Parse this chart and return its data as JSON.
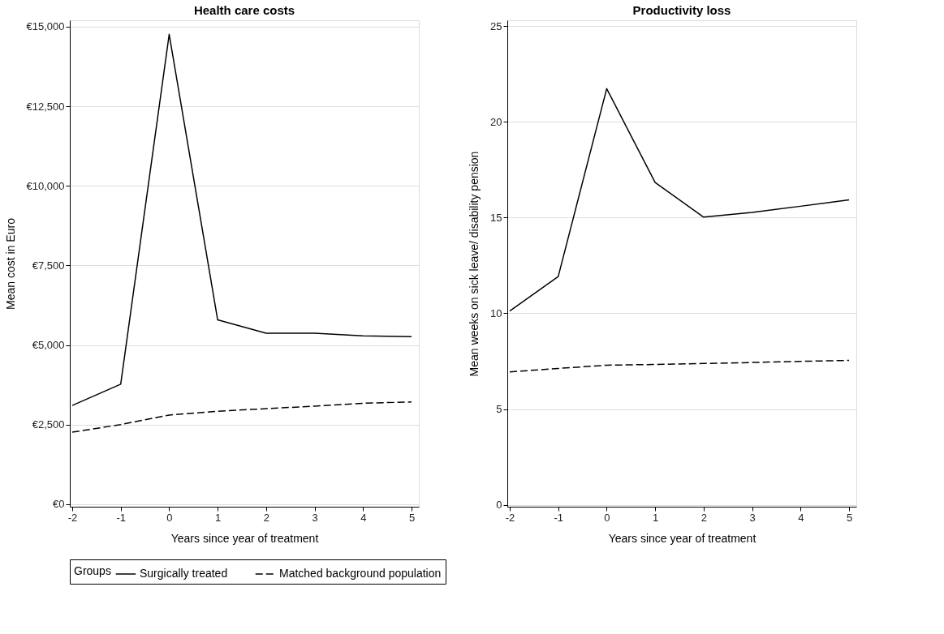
{
  "chart_data": [
    {
      "type": "line",
      "title": "Health care costs",
      "xlabel": "Years since year of treatment",
      "ylabel": "Mean cost in Euro",
      "legend_title": "Groups",
      "legend": "bottom",
      "grid": "y",
      "marker": "none",
      "x": [
        -2,
        -1,
        0,
        1,
        2,
        3,
        4,
        5
      ],
      "xlim": [
        -2.05,
        5.15
      ],
      "xticks": [
        -2,
        -1,
        0,
        1,
        2,
        3,
        4,
        5
      ],
      "ylim": [
        -80,
        15200
      ],
      "yticks": [
        {
          "value": 0,
          "label": "€0"
        },
        {
          "value": 2500,
          "label": "€2,500"
        },
        {
          "value": 5000,
          "label": "€5,000"
        },
        {
          "value": 7500,
          "label": "€7,500"
        },
        {
          "value": 10000,
          "label": "€10,000"
        },
        {
          "value": 12500,
          "label": "€12,500"
        },
        {
          "value": 15000,
          "label": "€15,000"
        }
      ],
      "series": [
        {
          "name": "Surgically treated",
          "color": "#000000",
          "line_style": "solid",
          "values": [
            3100,
            3770,
            14760,
            5790,
            5370,
            5370,
            5290,
            5260
          ]
        },
        {
          "name": "Matched background population",
          "color": "#000000",
          "line_style": "dashed",
          "values": [
            2260,
            2500,
            2800,
            2920,
            3000,
            3080,
            3170,
            3210
          ]
        }
      ]
    },
    {
      "type": "line",
      "title": "Productivity loss",
      "xlabel": "Years since year of treatment",
      "ylabel": "Mean weeks on sick leave/ disability pension",
      "legend": "bottom",
      "grid": "y",
      "marker": "none",
      "x": [
        -2,
        -1,
        0,
        1,
        2,
        3,
        4,
        5
      ],
      "xlim": [
        -2.05,
        5.15
      ],
      "xticks": [
        -2,
        -1,
        0,
        1,
        2,
        3,
        4,
        5
      ],
      "ylim": [
        -0.1,
        25.3
      ],
      "yticks": [
        0,
        5,
        10,
        15,
        20,
        25
      ],
      "series": [
        {
          "name": "Surgically treated",
          "color": "#000000",
          "line_style": "solid",
          "values": [
            10.12,
            11.92,
            21.73,
            16.83,
            15.02,
            15.27,
            15.59,
            15.92
          ]
        },
        {
          "name": "Matched background population",
          "color": "#000000",
          "line_style": "dashed",
          "values": [
            6.94,
            7.12,
            7.29,
            7.33,
            7.38,
            7.43,
            7.49,
            7.54
          ]
        }
      ]
    }
  ]
}
